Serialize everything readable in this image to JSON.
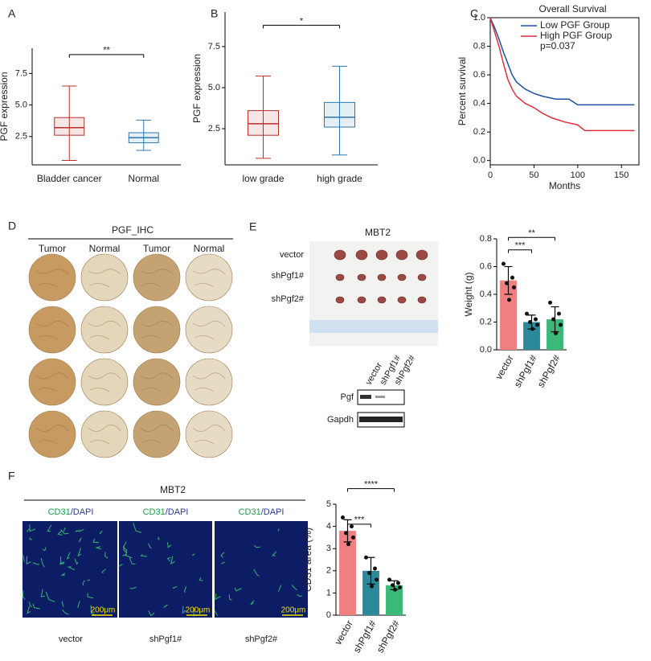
{
  "chart_data": [
    {
      "type": "box",
      "panel": "A",
      "ylabel": "PGF expression",
      "categories": [
        "Bladder cancer",
        "Normal"
      ],
      "boxes": [
        {
          "min": 0.6,
          "q1": 2.6,
          "median": 3.2,
          "q3": 4.0,
          "max": 6.5
        },
        {
          "min": 1.4,
          "q1": 2.0,
          "median": 2.4,
          "q3": 2.8,
          "max": 3.8
        }
      ],
      "colors": [
        "#b8302a",
        "#2a7ab0"
      ],
      "ylim": [
        0.25,
        9.5
      ],
      "yticks": [
        2.5,
        {
          "value": 5,
          "label": "5.0"
        },
        7.5
      ],
      "annotations": [
        {
          "text": "**",
          "pair": [
            0,
            1
          ],
          "y": 9.0
        }
      ]
    },
    {
      "type": "box",
      "panel": "B",
      "ylabel": "PGF expression",
      "categories": [
        "low grade",
        "high grade"
      ],
      "boxes": [
        {
          "min": 0.7,
          "q1": 2.1,
          "median": 2.8,
          "q3": 3.6,
          "max": 5.7
        },
        {
          "min": 0.9,
          "q1": 2.6,
          "median": 3.2,
          "q3": 4.1,
          "max": 6.3
        }
      ],
      "colors": [
        "#b8302a",
        "#2a7ab0"
      ],
      "ylim": [
        0.3,
        9.6
      ],
      "yticks": [
        2.5,
        {
          "value": 5,
          "label": "5.0"
        },
        7.5
      ],
      "annotations": [
        {
          "text": "*",
          "pair": [
            0,
            1
          ],
          "y": 8.8
        }
      ]
    },
    {
      "type": "line",
      "panel": "C",
      "title": "Overall  Survival",
      "xlabel": "Months",
      "ylabel": "Percent  survival",
      "series": [
        {
          "name": "Low PGF Group",
          "color": "#2050a0",
          "x": [
            0,
            5,
            10,
            15,
            20,
            25,
            30,
            40,
            50,
            60,
            75,
            90,
            100,
            165
          ],
          "values": [
            1,
            0.93,
            0.85,
            0.76,
            0.68,
            0.6,
            0.55,
            0.5,
            0.47,
            0.45,
            0.43,
            0.43,
            0.39,
            0.39
          ]
        },
        {
          "name": "High PGF Group",
          "color": "#e03040",
          "x": [
            0,
            5,
            10,
            15,
            20,
            25,
            30,
            40,
            50,
            60,
            70,
            85,
            100,
            108,
            165
          ],
          "values": [
            1,
            0.9,
            0.8,
            0.68,
            0.57,
            0.5,
            0.45,
            0.4,
            0.37,
            0.33,
            0.3,
            0.27,
            0.25,
            0.21,
            0.21
          ]
        }
      ],
      "annotation": "p=0.037",
      "xlim": [
        0,
        170
      ],
      "xticks": [
        0,
        50,
        100,
        150
      ],
      "ylim": [
        -0.03,
        1.0
      ],
      "yticks": [
        {
          "value": 0,
          "label": "0.0"
        },
        0.2,
        0.4,
        0.6,
        0.8,
        {
          "value": 1,
          "label": "1.0"
        }
      ]
    },
    {
      "type": "bar",
      "panel": "E",
      "ylabel": "Weight (g)",
      "categories": [
        "vector",
        "shPgf1#",
        "shPgf2#"
      ],
      "values": [
        0.5,
        0.2,
        0.22
      ],
      "errors": [
        0.1,
        0.05,
        0.09
      ],
      "points": [
        [
          0.62,
          0.52,
          0.48,
          0.45,
          0.36
        ],
        [
          0.26,
          0.22,
          0.2,
          0.18,
          0.15
        ],
        [
          0.34,
          0.26,
          0.22,
          0.18,
          0.12
        ]
      ],
      "colors": [
        "#f08080",
        "#2a8a9a",
        "#3cb878"
      ],
      "ylim": [
        0,
        0.8
      ],
      "yticks": [
        {
          "value": 0,
          "label": "0.0"
        },
        0.2,
        0.4,
        0.6,
        0.8
      ],
      "annotations": [
        {
          "text": "***",
          "pair": [
            0,
            1
          ],
          "y": 0.72
        },
        {
          "text": "**",
          "pair": [
            0,
            2
          ],
          "y": 0.81
        }
      ]
    },
    {
      "type": "bar",
      "panel": "F",
      "ylabel": "CD31 area (%)",
      "categories": [
        "vector",
        "shPgf1#",
        "shPgf2#"
      ],
      "values": [
        3.8,
        2.0,
        1.35
      ],
      "errors": [
        0.5,
        0.6,
        0.2
      ],
      "points": [
        [
          4.4,
          4.0,
          3.7,
          3.5,
          3.2
        ],
        [
          2.6,
          2.1,
          1.9,
          1.6,
          1.3
        ],
        [
          1.6,
          1.45,
          1.35,
          1.25,
          1.15
        ]
      ],
      "colors": [
        "#f08080",
        "#2a8a9a",
        "#3cb878"
      ],
      "ylim": [
        0,
        5
      ],
      "yticks": [
        0,
        1,
        2,
        3,
        4,
        5
      ],
      "annotations": [
        {
          "text": "***",
          "pair": [
            0,
            1
          ],
          "y": 4.1
        },
        {
          "text": "****",
          "pair": [
            0,
            2
          ],
          "y": 5.7
        }
      ]
    }
  ],
  "ihc": {
    "panel": "D",
    "title": "PGF_IHC",
    "columns": [
      "Tumor",
      "Normal",
      "Tumor",
      "Normal"
    ]
  },
  "tumor_photo": {
    "title": "MBT2",
    "rows": [
      "vector",
      "shPgf1#",
      "shPgf2#"
    ]
  },
  "western": {
    "lanes": [
      "vector",
      "shPgf1#",
      "shPgf2#"
    ],
    "bands": [
      "Pgf",
      "Gapdh"
    ]
  },
  "cd31": {
    "title": "MBT2",
    "stain": [
      "CD31",
      "/DAPI"
    ],
    "samples": [
      "vector",
      "shPgf1#",
      "shPgf2#"
    ],
    "scale_bar": "200μm"
  }
}
